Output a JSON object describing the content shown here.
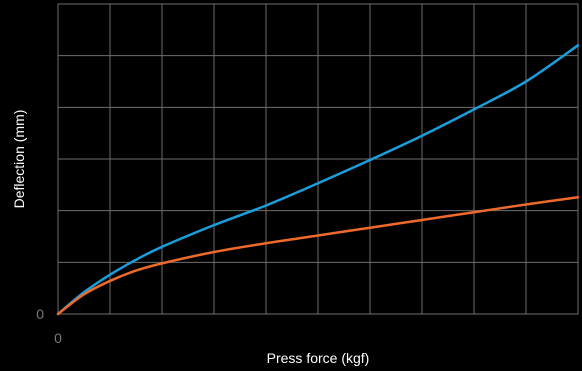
{
  "chart_data": {
    "type": "line",
    "title": "",
    "xlabel": "Press force (kgf)",
    "ylabel": "Deflection (mm)",
    "xlim": [
      0,
      10
    ],
    "ylim": [
      0,
      6
    ],
    "x_ticks": [
      {
        "value": 0,
        "label": "0"
      }
    ],
    "y_ticks": [
      {
        "value": 0,
        "label": "0"
      }
    ],
    "grid": true,
    "x_grid_count": 10,
    "y_grid_count": 6,
    "series": [
      {
        "color": "#1a9fdc",
        "x": [
          0,
          0.5,
          1,
          1.5,
          2,
          3,
          4,
          5,
          6,
          7,
          8,
          9,
          10
        ],
        "y": [
          0,
          0.42,
          0.76,
          1.05,
          1.3,
          1.72,
          2.1,
          2.53,
          2.98,
          3.45,
          3.96,
          4.5,
          5.2
        ]
      },
      {
        "color": "#ee6a2a",
        "x": [
          0,
          0.5,
          1,
          1.5,
          2,
          3,
          4,
          5,
          6,
          7,
          8,
          9,
          10
        ],
        "y": [
          0,
          0.38,
          0.64,
          0.84,
          0.98,
          1.2,
          1.37,
          1.52,
          1.67,
          1.82,
          1.97,
          2.12,
          2.26
        ]
      }
    ]
  }
}
